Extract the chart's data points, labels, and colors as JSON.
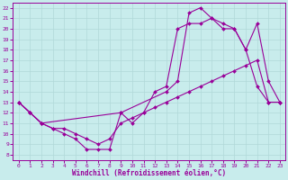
{
  "xlabel": "Windchill (Refroidissement éolien,°C)",
  "background_color": "#c8ecec",
  "grid_color": "#b0d8d8",
  "line_color": "#990099",
  "xlim": [
    -0.5,
    23.5
  ],
  "ylim": [
    7.5,
    22.5
  ],
  "xticks": [
    0,
    1,
    2,
    3,
    4,
    5,
    6,
    7,
    8,
    9,
    10,
    11,
    12,
    13,
    14,
    15,
    16,
    17,
    18,
    19,
    20,
    21,
    22,
    23
  ],
  "yticks": [
    8,
    9,
    10,
    11,
    12,
    13,
    14,
    15,
    16,
    17,
    18,
    19,
    20,
    21,
    22
  ],
  "line1_x": [
    0,
    1,
    2,
    3,
    4,
    5,
    6,
    7,
    8,
    9,
    10,
    11,
    12,
    13,
    14,
    15,
    16,
    17,
    18,
    19,
    20,
    21,
    22,
    23
  ],
  "line1_y": [
    13,
    12,
    11,
    10.5,
    10,
    9.5,
    8.5,
    8.5,
    8.5,
    12,
    11,
    12,
    14,
    14.5,
    20,
    20.5,
    20.5,
    21,
    20,
    20,
    18,
    14.5,
    13,
    13
  ],
  "line2_x": [
    0,
    1,
    2,
    3,
    4,
    5,
    6,
    7,
    8,
    9,
    10,
    11,
    12,
    13,
    14,
    15,
    16,
    17,
    18,
    19,
    20,
    21,
    22,
    23
  ],
  "line2_y": [
    13,
    12,
    11,
    10.5,
    10.5,
    10,
    9.5,
    9,
    9.5,
    11,
    11.5,
    12,
    12.5,
    13,
    13.5,
    14,
    14.5,
    15,
    15.5,
    16,
    16.5,
    17,
    13,
    13
  ],
  "line3_x": [
    0,
    1,
    2,
    9,
    13,
    14,
    15,
    16,
    17,
    18,
    19,
    20,
    21,
    22,
    23
  ],
  "line3_y": [
    13,
    12,
    11,
    12,
    14,
    15,
    21.5,
    22,
    21,
    20.5,
    20,
    18,
    20.5,
    15,
    13
  ]
}
